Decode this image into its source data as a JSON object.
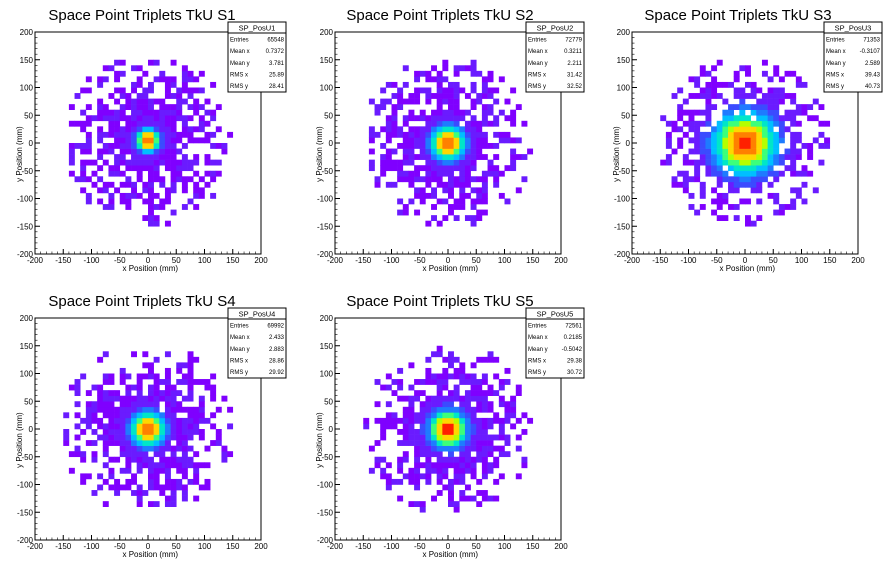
{
  "chart_data": [
    {
      "type": "heatmap",
      "title": "Space Point Triplets TkU S1",
      "xlabel": "x Position (mm)",
      "ylabel": "y Position (mm)",
      "xlim": [
        -200,
        200
      ],
      "ylim": [
        -200,
        200
      ],
      "xticks": [
        -200,
        -150,
        -100,
        -50,
        0,
        50,
        100,
        150,
        200
      ],
      "yticks": [
        -200,
        -150,
        -100,
        -50,
        0,
        50,
        100,
        150,
        200
      ],
      "stats": {
        "name": "SP_PosU1",
        "rows": [
          [
            "Entries",
            "65548"
          ],
          [
            "Mean x",
            "0.7372"
          ],
          [
            "Mean y",
            "3.781"
          ],
          [
            "RMS x",
            "25.89"
          ],
          [
            "RMS y",
            "28.41"
          ]
        ]
      },
      "distribution": {
        "extent": [
          -150,
          150
        ],
        "core_width": 15,
        "peak": [
          0,
          5
        ]
      }
    },
    {
      "type": "heatmap",
      "title": "Space Point Triplets TkU S2",
      "xlabel": "x Position (mm)",
      "ylabel": "y Position (mm)",
      "xlim": [
        -200,
        200
      ],
      "ylim": [
        -200,
        200
      ],
      "xticks": [
        -200,
        -150,
        -100,
        -50,
        0,
        50,
        100,
        150,
        200
      ],
      "yticks": [
        -200,
        -150,
        -100,
        -50,
        0,
        50,
        100,
        150,
        200
      ],
      "stats": {
        "name": "SP_PosU2",
        "rows": [
          [
            "Entries",
            "72779"
          ],
          [
            "Mean x",
            "0.3211"
          ],
          [
            "Mean y",
            "2.211"
          ],
          [
            "RMS x",
            "31.42"
          ],
          [
            "RMS y",
            "32.52"
          ]
        ]
      },
      "distribution": {
        "extent": [
          -150,
          150
        ],
        "core_width": 22,
        "peak": [
          0,
          0
        ]
      }
    },
    {
      "type": "heatmap",
      "title": "Space Point Triplets TkU S3",
      "xlabel": "x Position (mm)",
      "ylabel": "y Position (mm)",
      "xlim": [
        -200,
        200
      ],
      "ylim": [
        -200,
        200
      ],
      "xticks": [
        -200,
        -150,
        -100,
        -50,
        0,
        50,
        100,
        150,
        200
      ],
      "yticks": [
        -200,
        -150,
        -100,
        -50,
        0,
        50,
        100,
        150,
        200
      ],
      "stats": {
        "name": "SP_PosU3",
        "rows": [
          [
            "Entries",
            "71353"
          ],
          [
            "Mean x",
            "-0.3107"
          ],
          [
            "Mean y",
            "2.589"
          ],
          [
            "RMS x",
            "39.43"
          ],
          [
            "RMS y",
            "40.73"
          ]
        ]
      },
      "distribution": {
        "extent": [
          -150,
          150
        ],
        "core_width": 40,
        "peak": [
          0,
          0
        ]
      }
    },
    {
      "type": "heatmap",
      "title": "Space Point Triplets TkU S4",
      "xlabel": "x Position (mm)",
      "ylabel": "y Position (mm)",
      "xlim": [
        -200,
        200
      ],
      "ylim": [
        -200,
        200
      ],
      "xticks": [
        -200,
        -150,
        -100,
        -50,
        0,
        50,
        100,
        150,
        200
      ],
      "yticks": [
        -200,
        -150,
        -100,
        -50,
        0,
        50,
        100,
        150,
        200
      ],
      "stats": {
        "name": "SP_PosU4",
        "rows": [
          [
            "Entries",
            "69992"
          ],
          [
            "Mean x",
            "2.433"
          ],
          [
            "Mean y",
            "2.883"
          ],
          [
            "RMS x",
            "28.86"
          ],
          [
            "RMS y",
            "29.92"
          ]
        ]
      },
      "distribution": {
        "extent": [
          -150,
          150
        ],
        "core_width": 22,
        "peak": [
          0,
          0
        ]
      }
    },
    {
      "type": "heatmap",
      "title": "Space Point Triplets TkU S5",
      "xlabel": "x Position (mm)",
      "ylabel": "y Position (mm)",
      "xlim": [
        -200,
        200
      ],
      "ylim": [
        -200,
        200
      ],
      "xticks": [
        -200,
        -150,
        -100,
        -50,
        0,
        50,
        100,
        150,
        200
      ],
      "yticks": [
        -200,
        -150,
        -100,
        -50,
        0,
        50,
        100,
        150,
        200
      ],
      "stats": {
        "name": "SP_PosU5",
        "rows": [
          [
            "Entries",
            "72561"
          ],
          [
            "Mean x",
            "0.2185"
          ],
          [
            "Mean y",
            "-0.5042"
          ],
          [
            "RMS x",
            "29.38"
          ],
          [
            "RMS y",
            "30.72"
          ]
        ]
      },
      "distribution": {
        "extent": [
          -150,
          150
        ],
        "core_width": 24,
        "peak": [
          0,
          0
        ]
      }
    }
  ],
  "palette": [
    "#7f00ff",
    "#6a1bff",
    "#3b4bff",
    "#1e7bff",
    "#00bfff",
    "#00e6c8",
    "#3cff7a",
    "#b4ff00",
    "#ffd700",
    "#ff8000",
    "#ff2000"
  ]
}
